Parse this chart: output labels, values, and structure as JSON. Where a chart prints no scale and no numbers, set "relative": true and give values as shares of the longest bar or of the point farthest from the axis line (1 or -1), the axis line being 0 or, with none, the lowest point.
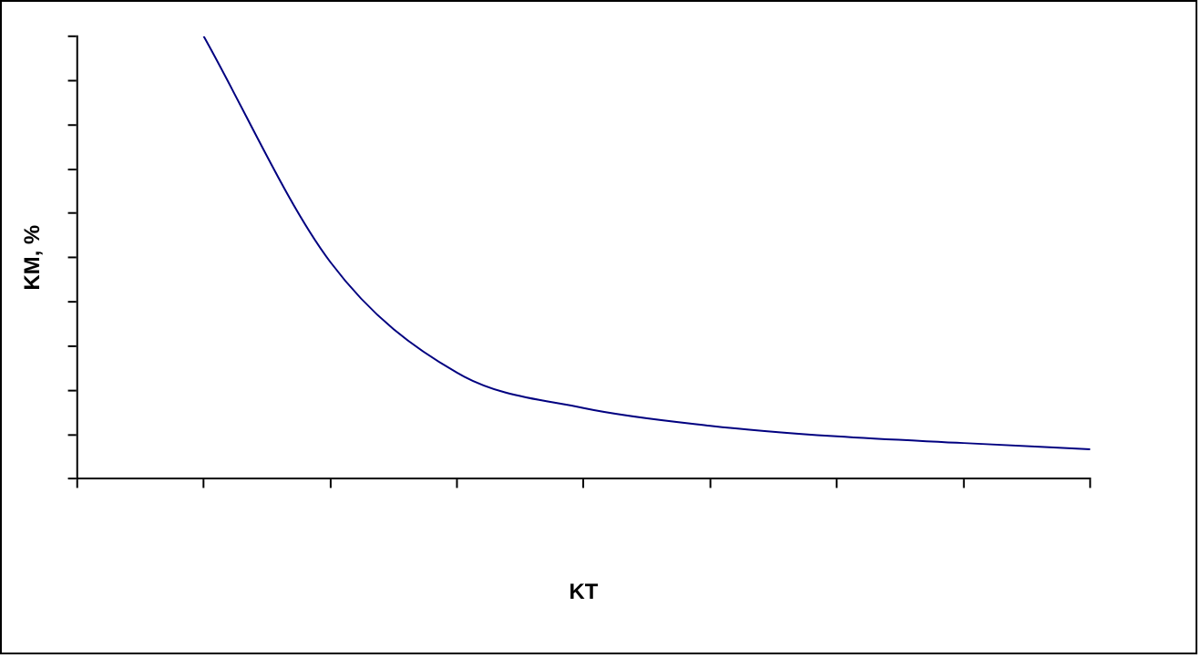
{
  "chart_data": {
    "type": "line",
    "relative": true,
    "xlabel": "KT",
    "ylabel": "KM, %",
    "categories": [
      null,
      null,
      null,
      null,
      null,
      null,
      null,
      null,
      null
    ],
    "series": [
      {
        "color": "#000080",
        "values": [
          null,
          1.0,
          0.49,
          0.24,
          0.16,
          0.12,
          0.096,
          0.081,
          0.067
        ]
      }
    ],
    "grid": false,
    "legend": false,
    "marker": "none",
    "line_style": "solid"
  }
}
